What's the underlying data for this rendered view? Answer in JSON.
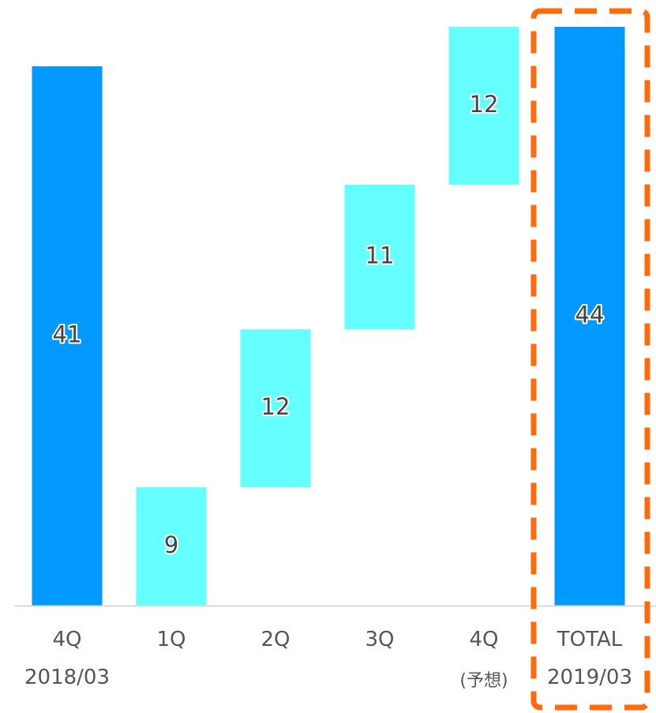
{
  "chart_data": {
    "type": "bar",
    "subtype": "waterfall",
    "categories": [
      {
        "line1": "4Q",
        "line2": "2018/03"
      },
      {
        "line1": "1Q",
        "line2": ""
      },
      {
        "line1": "2Q",
        "line2": ""
      },
      {
        "line1": "3Q",
        "line2": ""
      },
      {
        "line1": "4Q",
        "line2": "(予想)"
      },
      {
        "line1": "TOTAL",
        "line2": "2019/03"
      }
    ],
    "bars": [
      {
        "kind": "total",
        "base": 0,
        "top": 41,
        "label": "41"
      },
      {
        "kind": "increment",
        "base": 0,
        "top": 9,
        "label": "9"
      },
      {
        "kind": "increment",
        "base": 9,
        "top": 21,
        "label": "12"
      },
      {
        "kind": "increment",
        "base": 21,
        "top": 32,
        "label": "11"
      },
      {
        "kind": "increment",
        "base": 32,
        "top": 44,
        "label": "12"
      },
      {
        "kind": "total",
        "base": 0,
        "top": 44,
        "label": "44"
      }
    ],
    "ylim": [
      0,
      44
    ],
    "grid": false,
    "legend": "none",
    "highlight_last_category": true
  },
  "colors": {
    "total": "#0299FE",
    "increment": "#66FFFF",
    "highlight": "#FF6A0A",
    "axis": "#D9D9D9"
  }
}
